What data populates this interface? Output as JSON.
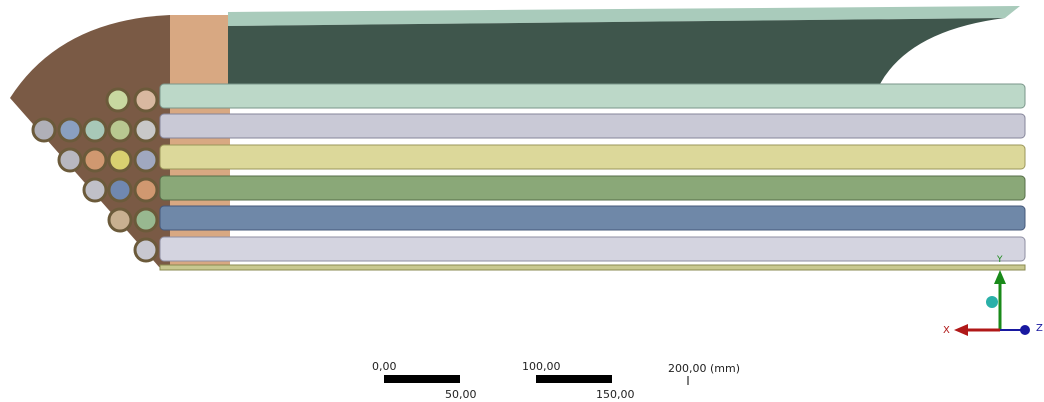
{
  "scale_bar": {
    "labels": [
      "0,00",
      "50,00",
      "100,00",
      "150,00",
      "200,00 (mm)"
    ]
  },
  "triad": {
    "x": "X",
    "y": "Y",
    "z": "Z"
  }
}
